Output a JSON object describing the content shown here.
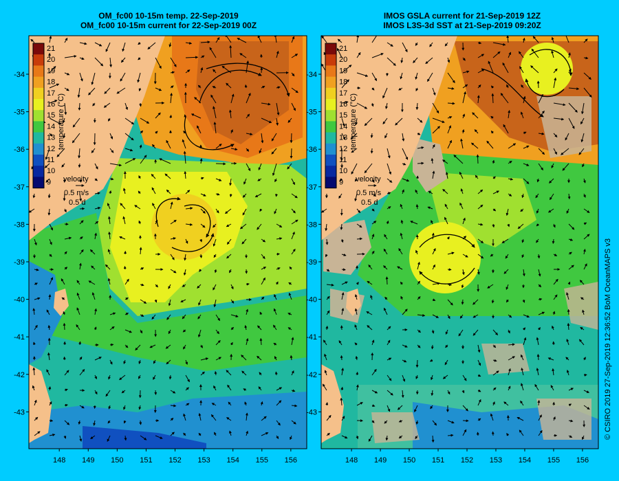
{
  "left_panel": {
    "title_line1": "OM_fc00 10-15m temp. 22-Sep-2019",
    "title_line2": "OM_fc00 10-15m current for 22-Sep-2019 00Z"
  },
  "right_panel": {
    "title_line1": "IMOS GSLA current for 21-Sep-2019 12Z",
    "title_line2": "IMOS L3S-3d SST at 21-Sep-2019 09:20Z"
  },
  "colorbar": {
    "label": "temperature (°C)",
    "ticks": [
      "21",
      "20",
      "19",
      "18",
      "17",
      "16",
      "15",
      "14",
      "13",
      "12",
      "11",
      "10",
      "9"
    ],
    "colors": [
      "#7a0a0a",
      "#c83c0a",
      "#e87818",
      "#f0a020",
      "#f0d020",
      "#e8f020",
      "#a0e030",
      "#40c840",
      "#20b8a0",
      "#2090d0",
      "#1050c0",
      "#0828a0",
      "#050a70"
    ]
  },
  "velocity_legend": {
    "label": "velocity",
    "speed": "0.5 m/s",
    "duration": "0.5 d"
  },
  "axes": {
    "lat_ticks": [
      "-34",
      "-35",
      "-36",
      "-37",
      "-38",
      "-39",
      "-40",
      "-41",
      "-42",
      "-43"
    ],
    "lon_ticks": [
      "148",
      "149",
      "150",
      "151",
      "152",
      "153",
      "154",
      "155",
      "156"
    ]
  },
  "credit": "© CSIRO 2019   27-Sep-2019 12:36:52 BoM OceanMAPS v3",
  "colors": {
    "land": "#f5c08a",
    "background": "#00ccff",
    "cloud": "#c8b496"
  }
}
